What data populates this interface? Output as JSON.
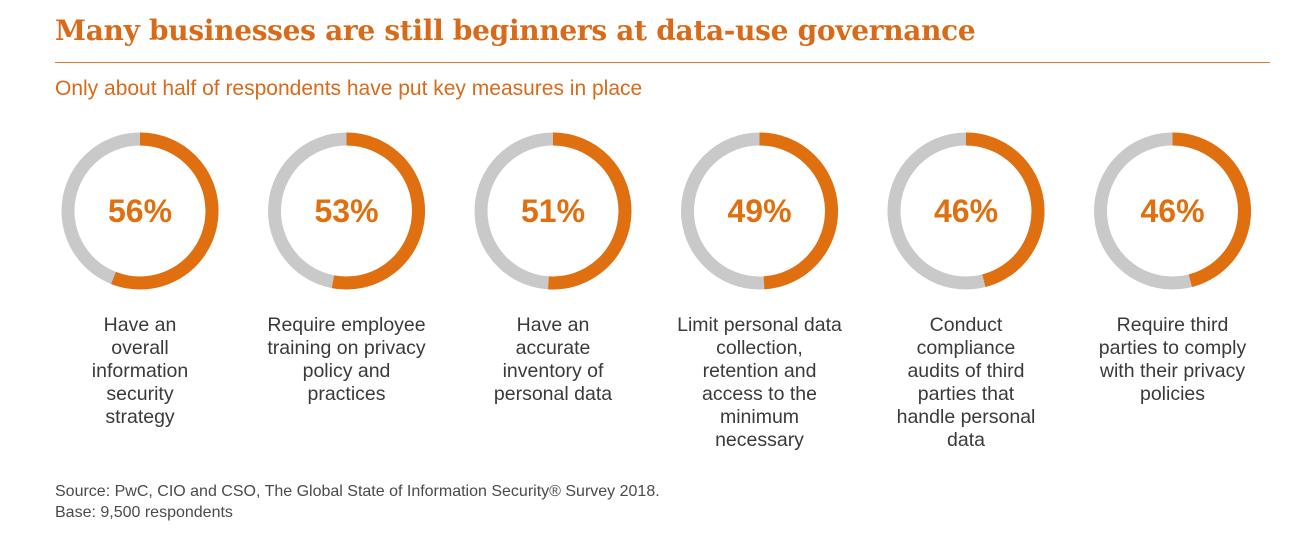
{
  "title": "Many businesses are still beginners at data-use governance",
  "subtitle": "Only about half of respondents have put key measures in place",
  "colors": {
    "accent": "#e0700f",
    "track": "#c9c9c9",
    "title": "#d86a1a"
  },
  "chart_data": {
    "type": "donut",
    "max": 100,
    "unit": "%",
    "items": [
      {
        "value": 56,
        "label_text": "56%",
        "caption": "Have an\noverall\ninformation\nsecurity\nstrategy"
      },
      {
        "value": 53,
        "label_text": "53%",
        "caption": "Require employee\ntraining on privacy\npolicy and\npractices"
      },
      {
        "value": 51,
        "label_text": "51%",
        "caption": "Have an\naccurate\ninventory of\npersonal data"
      },
      {
        "value": 49,
        "label_text": "49%",
        "caption": "Limit personal data\ncollection,\nretention and\naccess to the\nminimum\nnecessary"
      },
      {
        "value": 46,
        "label_text": "46%",
        "caption": "Conduct\ncompliance\naudits of third\nparties that\nhandle personal\ndata"
      },
      {
        "value": 46,
        "label_text": "46%",
        "caption": "Require third\nparties to comply\nwith their privacy\npolicies"
      }
    ]
  },
  "source": {
    "line1": "Source: PwC, CIO and CSO, The Global State of Information Security® Survey 2018.",
    "line2": "Base: 9,500 respondents"
  }
}
